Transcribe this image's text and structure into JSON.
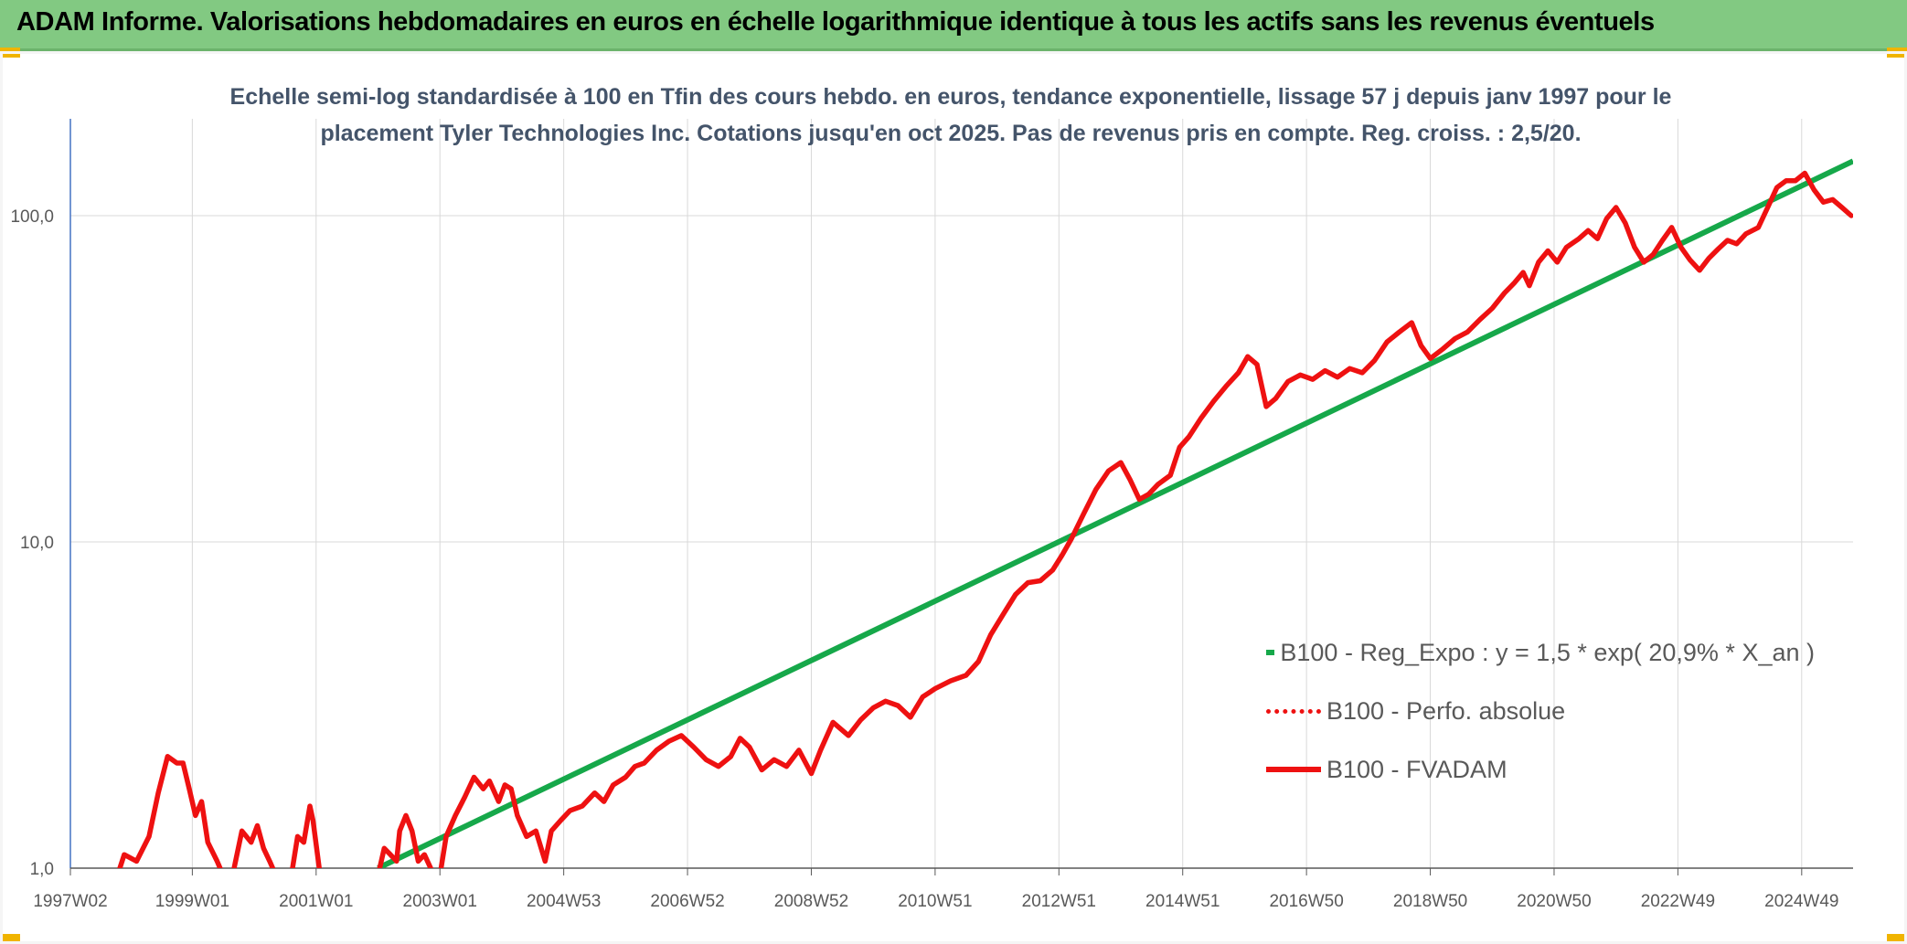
{
  "header": {
    "title": "ADAM Informe. Valorisations hebdomadaires en euros en échelle logarithmique identique à tous les actifs sans les revenus éventuels",
    "bg_color": "#82c982",
    "corner_color": "#f0b400"
  },
  "chart_data": {
    "type": "line",
    "title_line1": "Echelle semi-log standardisée à 100 en Tfin des cours hebdo. en euros, tendance exponentielle, lissage 57 j depuis janv 1997 pour le",
    "title_line2": "placement Tyler Technologies Inc. Cotations jusqu'en oct 2025. Pas de revenus pris en compte. Reg. croiss. : 2,5/20.",
    "y_scale": "log",
    "ylim": [
      1,
      180
    ],
    "y_ticks": [
      {
        "value": 1,
        "label": "1,0"
      },
      {
        "value": 10,
        "label": "10,0"
      },
      {
        "value": 100,
        "label": "100,0"
      }
    ],
    "xlim": [
      1997.03,
      2025.83
    ],
    "x_ticks": [
      {
        "value": 1997.03,
        "label": "1997W02"
      },
      {
        "value": 1999.0,
        "label": "1999W01"
      },
      {
        "value": 2001.0,
        "label": "2001W01"
      },
      {
        "value": 2003.0,
        "label": "2003W01"
      },
      {
        "value": 2005.0,
        "label": "2004W53"
      },
      {
        "value": 2007.0,
        "label": "2006W52"
      },
      {
        "value": 2009.0,
        "label": "2008W52"
      },
      {
        "value": 2011.0,
        "label": "2010W51"
      },
      {
        "value": 2013.0,
        "label": "2012W51"
      },
      {
        "value": 2015.0,
        "label": "2014W51"
      },
      {
        "value": 2017.0,
        "label": "2016W50"
      },
      {
        "value": 2019.0,
        "label": "2018W50"
      },
      {
        "value": 2021.0,
        "label": "2020W50"
      },
      {
        "value": 2023.0,
        "label": "2022W49"
      },
      {
        "value": 2025.0,
        "label": "2024W49"
      }
    ],
    "grid": true,
    "legend_position": "bottom-right",
    "series": [
      {
        "name": "B100 - Reg_Expo : y = 1,5 * exp( 20,9% *  X_an )",
        "color": "#16a84a",
        "style": "solid",
        "points": [
          [
            2002.0,
            1.0
          ],
          [
            2025.83,
            147
          ]
        ]
      },
      {
        "name": "B100 - Perfo. absolue",
        "color": "#ee1111",
        "style": "dotted",
        "points": []
      },
      {
        "name": "B100 - FVADAM",
        "color": "#ee1111",
        "style": "solid",
        "segments": [
          [
            [
              1997.75,
              0.9
            ],
            [
              1997.9,
              1.1
            ],
            [
              1998.1,
              1.05
            ],
            [
              1998.3,
              1.25
            ],
            [
              1998.45,
              1.7
            ],
            [
              1998.6,
              2.2
            ],
            [
              1998.75,
              2.1
            ],
            [
              1998.85,
              2.1
            ],
            [
              1998.95,
              1.75
            ],
            [
              1999.05,
              1.45
            ],
            [
              1999.15,
              1.6
            ],
            [
              1999.25,
              1.2
            ],
            [
              1999.4,
              1.05
            ],
            [
              1999.5,
              0.95
            ]
          ],
          [
            [
              1999.65,
              0.95
            ],
            [
              1999.8,
              1.3
            ],
            [
              1999.95,
              1.2
            ],
            [
              2000.05,
              1.35
            ],
            [
              2000.15,
              1.15
            ],
            [
              2000.25,
              1.05
            ],
            [
              2000.35,
              0.95
            ]
          ],
          [
            [
              2000.6,
              0.95
            ],
            [
              2000.7,
              1.25
            ],
            [
              2000.8,
              1.2
            ],
            [
              2000.9,
              1.55
            ],
            [
              2000.95,
              1.4
            ],
            [
              2001.05,
              1.0
            ],
            [
              2001.1,
              0.95
            ]
          ],
          [
            [
              2002.0,
              0.95
            ],
            [
              2002.1,
              1.15
            ],
            [
              2002.2,
              1.1
            ],
            [
              2002.3,
              1.05
            ],
            [
              2002.35,
              1.3
            ],
            [
              2002.45,
              1.45
            ],
            [
              2002.55,
              1.3
            ],
            [
              2002.65,
              1.05
            ],
            [
              2002.75,
              1.1
            ],
            [
              2002.85,
              1.0
            ],
            [
              2002.9,
              0.95
            ]
          ],
          [
            [
              2003.0,
              0.95
            ],
            [
              2003.1,
              1.25
            ],
            [
              2003.25,
              1.45
            ],
            [
              2003.4,
              1.65
            ],
            [
              2003.55,
              1.9
            ],
            [
              2003.7,
              1.75
            ],
            [
              2003.8,
              1.85
            ],
            [
              2003.95,
              1.6
            ],
            [
              2004.05,
              1.8
            ],
            [
              2004.15,
              1.75
            ],
            [
              2004.25,
              1.45
            ],
            [
              2004.4,
              1.25
            ],
            [
              2004.55,
              1.3
            ],
            [
              2004.7,
              1.05
            ],
            [
              2004.8,
              1.3
            ],
            [
              2004.95,
              1.4
            ],
            [
              2005.1,
              1.5
            ],
            [
              2005.3,
              1.55
            ],
            [
              2005.5,
              1.7
            ],
            [
              2005.65,
              1.6
            ],
            [
              2005.8,
              1.8
            ],
            [
              2006.0,
              1.9
            ],
            [
              2006.15,
              2.05
            ],
            [
              2006.3,
              2.1
            ],
            [
              2006.5,
              2.3
            ],
            [
              2006.7,
              2.45
            ],
            [
              2006.9,
              2.55
            ],
            [
              2007.1,
              2.35
            ],
            [
              2007.3,
              2.15
            ],
            [
              2007.5,
              2.05
            ],
            [
              2007.7,
              2.2
            ],
            [
              2007.85,
              2.5
            ],
            [
              2008.0,
              2.35
            ],
            [
              2008.2,
              2.0
            ],
            [
              2008.4,
              2.15
            ],
            [
              2008.6,
              2.05
            ],
            [
              2008.8,
              2.3
            ],
            [
              2009.0,
              1.95
            ],
            [
              2009.15,
              2.3
            ],
            [
              2009.35,
              2.8
            ],
            [
              2009.6,
              2.55
            ],
            [
              2009.8,
              2.85
            ],
            [
              2010.0,
              3.1
            ],
            [
              2010.2,
              3.25
            ],
            [
              2010.4,
              3.15
            ],
            [
              2010.6,
              2.9
            ],
            [
              2010.8,
              3.35
            ],
            [
              2011.0,
              3.55
            ],
            [
              2011.25,
              3.75
            ],
            [
              2011.5,
              3.9
            ],
            [
              2011.7,
              4.3
            ],
            [
              2011.9,
              5.2
            ],
            [
              2012.1,
              6.0
            ],
            [
              2012.3,
              6.9
            ],
            [
              2012.5,
              7.5
            ],
            [
              2012.7,
              7.6
            ],
            [
              2012.9,
              8.2
            ],
            [
              2013.05,
              9.1
            ],
            [
              2013.2,
              10.2
            ],
            [
              2013.4,
              12.2
            ],
            [
              2013.6,
              14.5
            ],
            [
              2013.8,
              16.5
            ],
            [
              2014.0,
              17.5
            ],
            [
              2014.15,
              15.5
            ],
            [
              2014.3,
              13.5
            ],
            [
              2014.45,
              14.0
            ],
            [
              2014.6,
              15.0
            ],
            [
              2014.8,
              16.0
            ],
            [
              2014.95,
              19.5
            ],
            [
              2015.1,
              21.0
            ],
            [
              2015.3,
              24.0
            ],
            [
              2015.5,
              27.0
            ],
            [
              2015.7,
              30.0
            ],
            [
              2015.9,
              33.0
            ],
            [
              2016.05,
              37.0
            ],
            [
              2016.2,
              35.0
            ],
            [
              2016.35,
              26.0
            ],
            [
              2016.5,
              27.5
            ],
            [
              2016.7,
              31.0
            ],
            [
              2016.9,
              32.5
            ],
            [
              2017.1,
              31.5
            ],
            [
              2017.3,
              33.5
            ],
            [
              2017.5,
              32.0
            ],
            [
              2017.7,
              34.0
            ],
            [
              2017.9,
              33.0
            ],
            [
              2018.1,
              36.0
            ],
            [
              2018.3,
              41.0
            ],
            [
              2018.5,
              44.0
            ],
            [
              2018.7,
              47.0
            ],
            [
              2018.85,
              40.0
            ],
            [
              2019.0,
              36.5
            ],
            [
              2019.2,
              39.0
            ],
            [
              2019.4,
              42.0
            ],
            [
              2019.6,
              44.0
            ],
            [
              2019.8,
              48.0
            ],
            [
              2020.0,
              52.0
            ],
            [
              2020.2,
              58.0
            ],
            [
              2020.35,
              62.0
            ],
            [
              2020.5,
              67.0
            ],
            [
              2020.6,
              61.0
            ],
            [
              2020.75,
              72.0
            ],
            [
              2020.9,
              78.0
            ],
            [
              2021.05,
              72.0
            ],
            [
              2021.2,
              80.0
            ],
            [
              2021.4,
              85.0
            ],
            [
              2021.55,
              90.0
            ],
            [
              2021.7,
              85.0
            ],
            [
              2021.85,
              98.0
            ],
            [
              2022.0,
              106.0
            ],
            [
              2022.15,
              95.0
            ],
            [
              2022.3,
              80.0
            ],
            [
              2022.45,
              72.0
            ],
            [
              2022.6,
              76.0
            ],
            [
              2022.75,
              84.0
            ],
            [
              2022.9,
              92.0
            ],
            [
              2023.05,
              80.0
            ],
            [
              2023.2,
              73.0
            ],
            [
              2023.35,
              68.0
            ],
            [
              2023.5,
              74.0
            ],
            [
              2023.65,
              79.0
            ],
            [
              2023.8,
              84.0
            ],
            [
              2023.95,
              82.0
            ],
            [
              2024.1,
              88.0
            ],
            [
              2024.3,
              92.0
            ],
            [
              2024.45,
              106.0
            ],
            [
              2024.6,
              122.0
            ],
            [
              2024.75,
              128.0
            ],
            [
              2024.9,
              128.0
            ],
            [
              2025.05,
              135.0
            ],
            [
              2025.2,
              120.0
            ],
            [
              2025.35,
              110.0
            ],
            [
              2025.5,
              112.0
            ],
            [
              2025.65,
              106.0
            ],
            [
              2025.8,
              100.0
            ]
          ]
        ]
      }
    ]
  }
}
